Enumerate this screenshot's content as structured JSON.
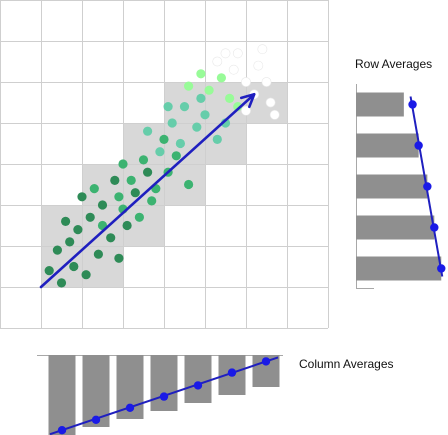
{
  "labels": {
    "row_averages": "Row Averages",
    "column_averages": "Column Averages"
  },
  "colors": {
    "grid_line": "#cfcfcf",
    "block_fill": "#d8d8d8",
    "bar_fill": "#8f8f8f",
    "arrow": "#1f1fbf",
    "marker": "#1a1ae6",
    "frame": "#a8a8a8",
    "point_shades": [
      "#2e8b57",
      "#3cb371",
      "#66cdaa",
      "#98fb98",
      "#ffffff"
    ]
  },
  "chart_data": {
    "type": "scatter",
    "grid": {
      "rows": 8,
      "cols": 8,
      "visible": true
    },
    "highlighted_cells": [
      {
        "row": 2,
        "col": 4
      },
      {
        "row": 2,
        "col": 5
      },
      {
        "row": 2,
        "col": 6
      },
      {
        "row": 3,
        "col": 3
      },
      {
        "row": 3,
        "col": 4
      },
      {
        "row": 3,
        "col": 5
      },
      {
        "row": 4,
        "col": 2
      },
      {
        "row": 4,
        "col": 3
      },
      {
        "row": 4,
        "col": 4
      },
      {
        "row": 5,
        "col": 1
      },
      {
        "row": 5,
        "col": 2
      },
      {
        "row": 5,
        "col": 3
      },
      {
        "row": 6,
        "col": 1
      },
      {
        "row": 6,
        "col": 2
      }
    ],
    "points": [
      [
        1.2,
        1.4,
        0
      ],
      [
        1.5,
        1.1,
        0
      ],
      [
        1.8,
        1.5,
        0
      ],
      [
        1.4,
        1.9,
        0
      ],
      [
        2.1,
        1.3,
        0
      ],
      [
        2.4,
        1.8,
        0
      ],
      [
        1.9,
        2.4,
        0
      ],
      [
        2.7,
        2.2,
        0
      ],
      [
        2.2,
        2.7,
        0
      ],
      [
        1.6,
        2.6,
        0
      ],
      [
        2.9,
        1.7,
        0
      ],
      [
        3.1,
        2.5,
        0
      ],
      [
        2.5,
        3.0,
        0
      ],
      [
        3.3,
        3.3,
        0
      ],
      [
        2.8,
        3.6,
        0
      ],
      [
        3.6,
        3.8,
        0
      ],
      [
        2.0,
        3.2,
        0
      ],
      [
        1.7,
        2.1,
        0
      ],
      [
        2.5,
        2.5,
        1
      ],
      [
        3.0,
        2.9,
        1
      ],
      [
        3.4,
        2.7,
        1
      ],
      [
        2.9,
        3.2,
        1
      ],
      [
        3.7,
        3.1,
        1
      ],
      [
        3.2,
        3.6,
        1
      ],
      [
        3.8,
        3.4,
        1
      ],
      [
        4.1,
        3.8,
        1
      ],
      [
        3.5,
        4.1,
        1
      ],
      [
        4.3,
        4.2,
        1
      ],
      [
        2.3,
        3.4,
        1
      ],
      [
        4.6,
        3.5,
        1
      ],
      [
        3.0,
        4.0,
        1
      ],
      [
        4.0,
        4.6,
        1
      ],
      [
        3.9,
        4.3,
        2
      ],
      [
        4.4,
        4.5,
        2
      ],
      [
        4.2,
        5.0,
        2
      ],
      [
        4.8,
        4.9,
        2
      ],
      [
        4.5,
        5.4,
        2
      ],
      [
        5.0,
        5.2,
        2
      ],
      [
        3.6,
        4.8,
        2
      ],
      [
        5.3,
        4.6,
        2
      ],
      [
        4.9,
        5.6,
        2
      ],
      [
        4.1,
        5.4,
        2
      ],
      [
        5.5,
        5.0,
        2
      ],
      [
        5.1,
        5.8,
        3
      ],
      [
        4.6,
        5.9,
        3
      ],
      [
        5.6,
        5.6,
        3
      ],
      [
        5.4,
        6.1,
        3
      ],
      [
        4.9,
        6.2,
        3
      ],
      [
        5.8,
        5.4,
        3
      ],
      [
        5.3,
        6.5,
        4
      ],
      [
        5.7,
        6.3,
        4
      ],
      [
        6.0,
        6.0,
        4
      ],
      [
        6.3,
        6.4,
        4
      ],
      [
        5.8,
        6.7,
        4
      ],
      [
        6.5,
        6.0,
        4
      ],
      [
        6.2,
        5.7,
        4
      ],
      [
        6.6,
        5.5,
        4
      ],
      [
        6.4,
        6.8,
        4
      ],
      [
        6.0,
        5.3,
        4
      ],
      [
        6.7,
        5.2,
        4
      ],
      [
        5.5,
        6.7,
        4
      ]
    ],
    "trend_arrow": {
      "from": [
        1.0,
        1.0
      ],
      "to": [
        6.2,
        5.7
      ]
    },
    "row_averages": {
      "bars": [
        0.55,
        0.72,
        0.82,
        0.9,
        0.98
      ],
      "markers": [
        0.65,
        0.72,
        0.82,
        0.9,
        0.98
      ]
    },
    "column_averages": {
      "bars": [
        1.0,
        0.9,
        0.8,
        0.7,
        0.6,
        0.5,
        0.4
      ],
      "markers": [
        0.06,
        0.19,
        0.34,
        0.48,
        0.62,
        0.78,
        0.92
      ]
    }
  }
}
